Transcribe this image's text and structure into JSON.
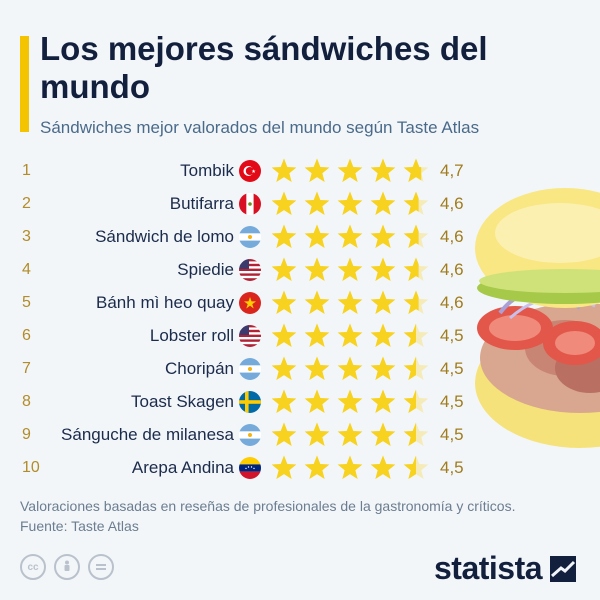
{
  "header": {
    "title": "Los mejores sándwiches del mundo",
    "subtitle": "Sándwiches mejor valorados del mundo según Taste Atlas"
  },
  "chart_data": {
    "type": "table",
    "title": "Los mejores sándwiches del mundo",
    "subtitle": "Sándwiches mejor valorados del mundo según Taste Atlas",
    "columns": [
      "rank",
      "sandwich",
      "country",
      "rating"
    ],
    "max_rating": 5,
    "rows": [
      {
        "rank": "1",
        "name": "Tombik",
        "country": "turkey",
        "score": "4,7",
        "value": 4.7
      },
      {
        "rank": "2",
        "name": "Butifarra",
        "country": "peru",
        "score": "4,6",
        "value": 4.6
      },
      {
        "rank": "3",
        "name": "Sándwich de lomo",
        "country": "argentina",
        "score": "4,6",
        "value": 4.6
      },
      {
        "rank": "4",
        "name": "Spiedie",
        "country": "usa",
        "score": "4,6",
        "value": 4.6
      },
      {
        "rank": "5",
        "name": "Bánh mì heo quay",
        "country": "vietnam",
        "score": "4,6",
        "value": 4.6
      },
      {
        "rank": "6",
        "name": "Lobster roll",
        "country": "usa",
        "score": "4,5",
        "value": 4.5
      },
      {
        "rank": "7",
        "name": "Choripán",
        "country": "argentina",
        "score": "4,5",
        "value": 4.5
      },
      {
        "rank": "8",
        "name": "Toast Skagen",
        "country": "sweden",
        "score": "4,5",
        "value": 4.5
      },
      {
        "rank": "9",
        "name": "Sánguche de milanesa",
        "country": "argentina",
        "score": "4,5",
        "value": 4.5
      },
      {
        "rank": "10",
        "name": "Arepa Andina",
        "country": "venezuela",
        "score": "4,5",
        "value": 4.5
      }
    ]
  },
  "footer": {
    "note": "Valoraciones basadas en reseñas de profesionales de la gastronomía y críticos.",
    "source": "Fuente: Taste Atlas",
    "brand": "statista",
    "license_icons": [
      "cc-icon",
      "by-icon",
      "nd-icon"
    ]
  },
  "colors": {
    "accent": "#f5c400",
    "star_filled": "#f7d21e",
    "star_empty": "#f4ebb8",
    "title": "#13203d",
    "subtitle": "#4a6a8a",
    "rank": "#b28c2a"
  }
}
